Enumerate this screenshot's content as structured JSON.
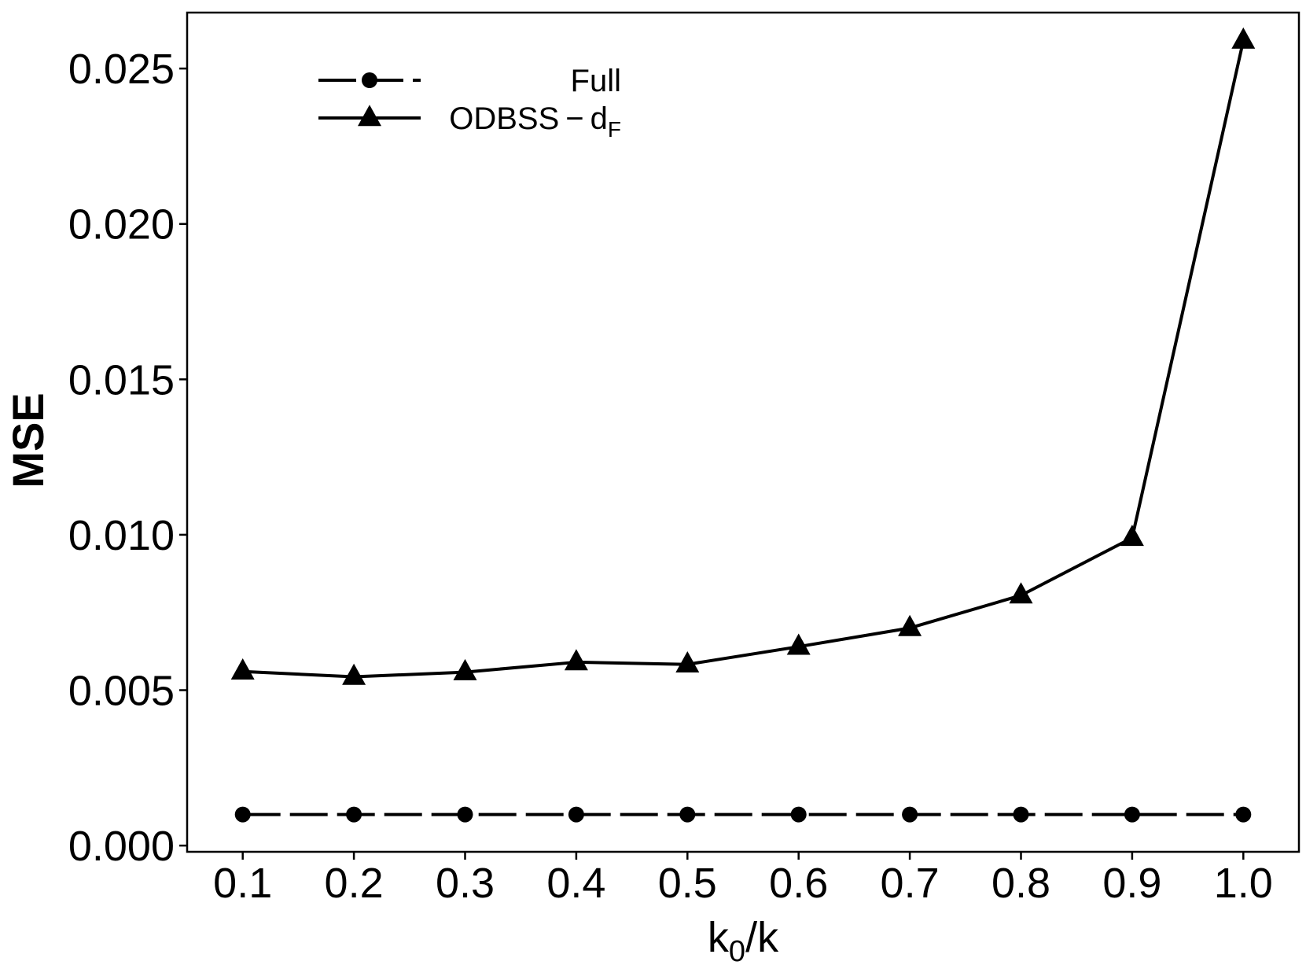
{
  "chart_data": {
    "type": "line",
    "xlabel": {
      "base": "k",
      "sub": "0",
      "rest": "/k"
    },
    "ylabel": "MSE",
    "xlim": [
      0.05,
      1.05
    ],
    "ylim": [
      -0.0002,
      0.0268
    ],
    "x": [
      0.1,
      0.2,
      0.3,
      0.4,
      0.5,
      0.6,
      0.7,
      0.8,
      0.9,
      1.0
    ],
    "x_ticks": [
      "0.1",
      "0.2",
      "0.3",
      "0.4",
      "0.5",
      "0.6",
      "0.7",
      "0.8",
      "0.9",
      "1.0"
    ],
    "y_ticks": [
      {
        "value": 0.0,
        "label": "0.000"
      },
      {
        "value": 0.005,
        "label": "0.005"
      },
      {
        "value": 0.01,
        "label": "0.010"
      },
      {
        "value": 0.015,
        "label": "0.015"
      },
      {
        "value": 0.02,
        "label": "0.020"
      },
      {
        "value": 0.025,
        "label": "0.025"
      }
    ],
    "series": [
      {
        "name": "Full",
        "marker": "circle",
        "line": "dashed",
        "values": [
          0.001,
          0.001,
          0.001,
          0.001,
          0.001,
          0.001,
          0.001,
          0.001,
          0.001,
          0.001
        ]
      },
      {
        "name": {
          "base": "ODBSS − d",
          "sub": "F"
        },
        "marker": "triangle",
        "line": "solid",
        "values": [
          0.0056,
          0.00543,
          0.00558,
          0.0059,
          0.00583,
          0.0064,
          0.007,
          0.00805,
          0.0099,
          0.0259
        ]
      }
    ],
    "legend": {
      "position": "top-left",
      "order": [
        "Full",
        "ODBSS-dF"
      ]
    },
    "grid": false,
    "colors": {
      "line": "#000000",
      "background": "#ffffff"
    }
  }
}
